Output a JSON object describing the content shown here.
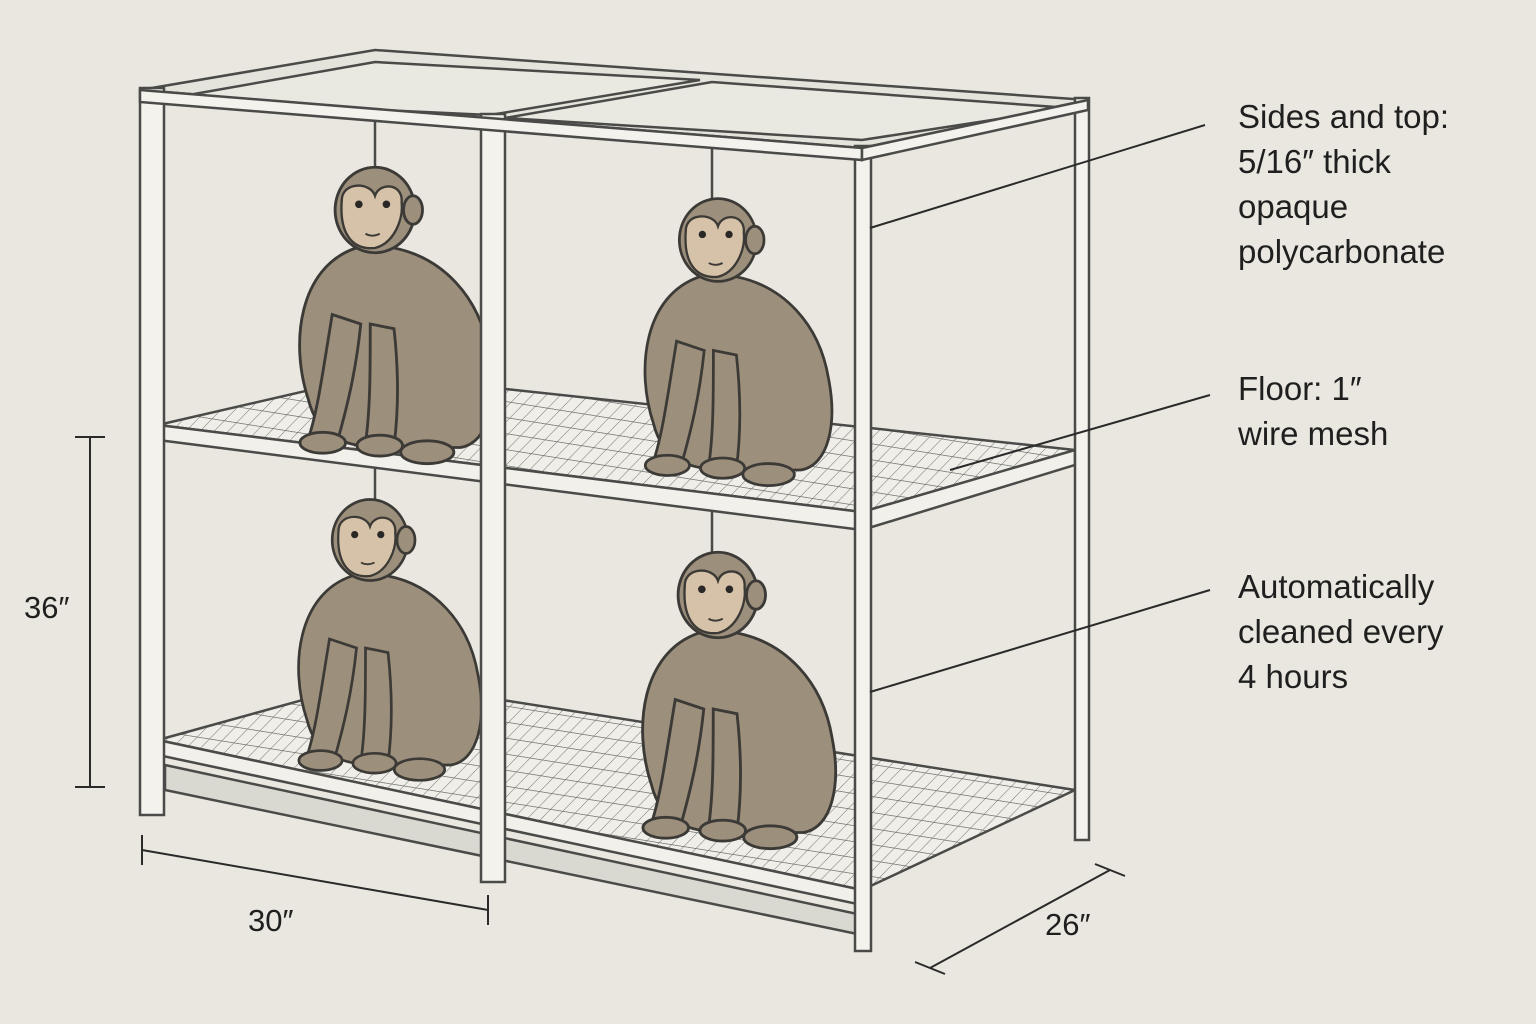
{
  "callouts": [
    {
      "text": "Sides and top:\n5/16″ thick\nopaque\npolycarbonate"
    },
    {
      "text": "Floor: 1″\nwire mesh"
    },
    {
      "text": "Automatically\ncleaned every\n4 hours"
    }
  ],
  "dimensions": {
    "height": "36″",
    "width": "30″",
    "depth": "26″"
  },
  "colors": {
    "background": "#e9e7df",
    "frame": "#f1f0ea",
    "outline": "#4a4a48",
    "monkey_body": "#9c8f7c",
    "monkey_face": "#d6c2a8"
  }
}
